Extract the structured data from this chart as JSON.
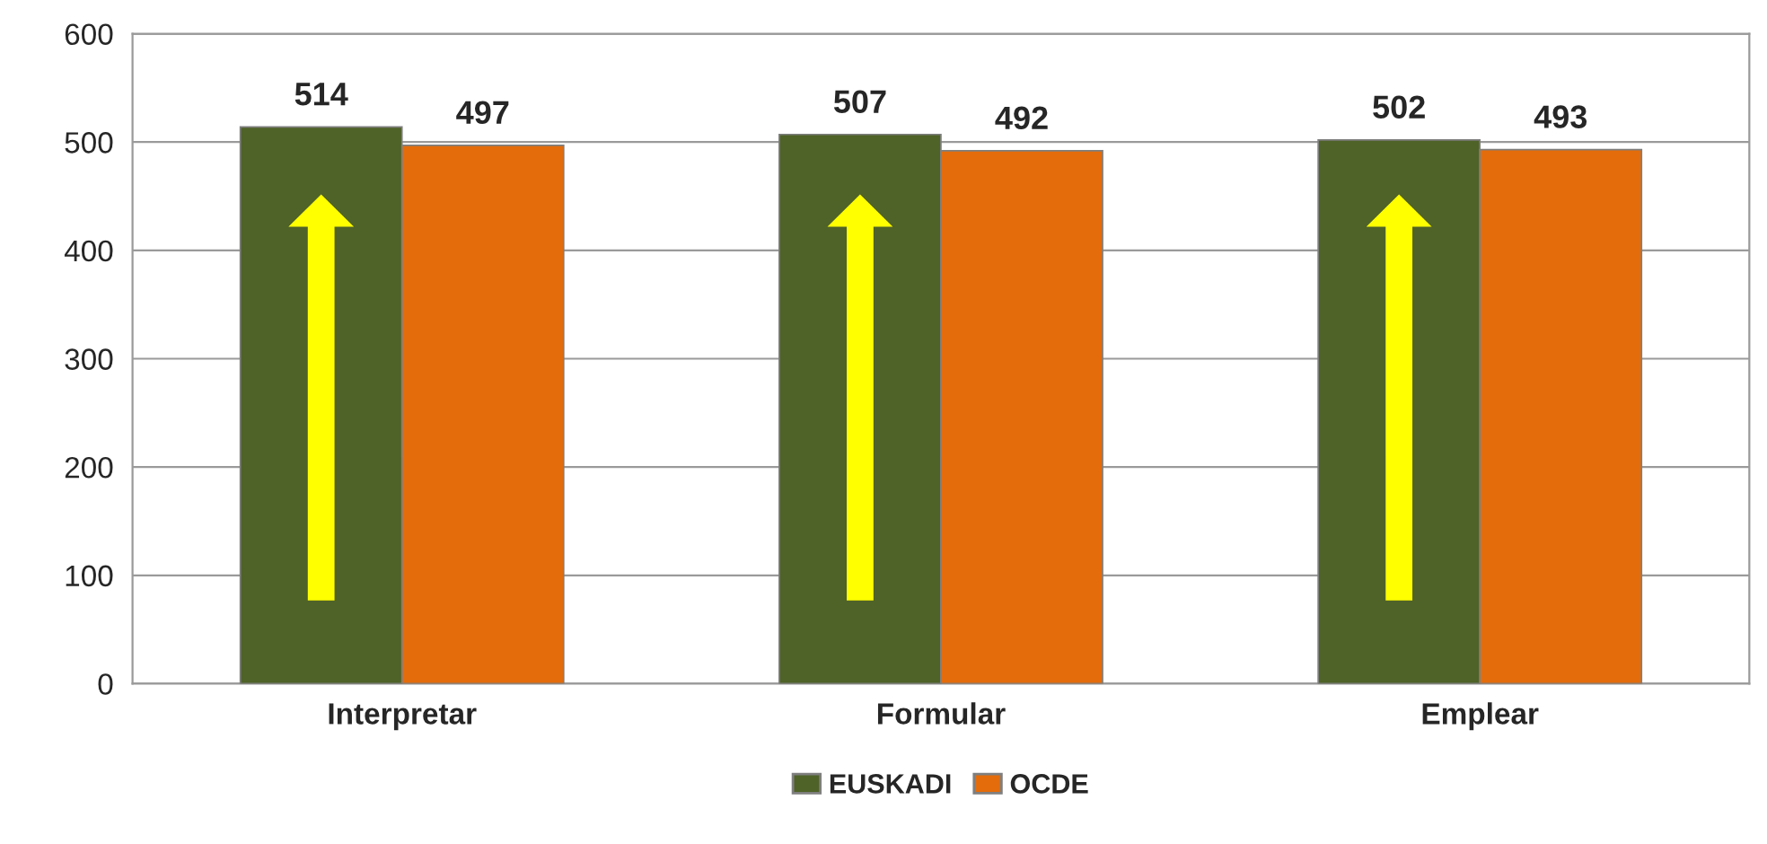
{
  "chart_data": {
    "type": "bar",
    "categories": [
      "Interpretar",
      "Formular",
      "Emplear"
    ],
    "series": [
      {
        "name": "EUSKADI",
        "color": "#4f6228",
        "values": [
          514,
          507,
          502
        ]
      },
      {
        "name": "OCDE",
        "color": "#e46c0a",
        "values": [
          497,
          492,
          493
        ]
      }
    ],
    "ylim": [
      0,
      600
    ],
    "yticks": [
      0,
      100,
      200,
      300,
      400,
      500,
      600
    ],
    "grid": "y",
    "legend": "bottom",
    "data_labels": true
  }
}
